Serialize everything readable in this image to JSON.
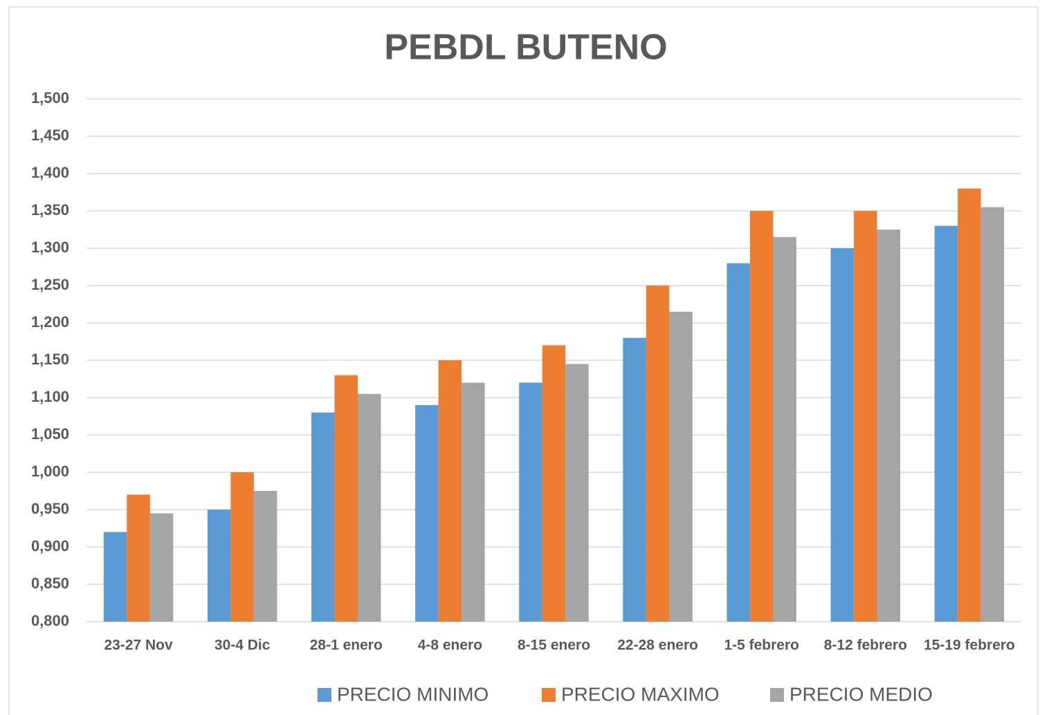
{
  "chart_data": {
    "type": "bar",
    "title": "PEBDL BUTENO",
    "categories": [
      "23-27 Nov",
      "30-4 Dic",
      "28-1 enero",
      "4-8 enero",
      "8-15 enero",
      "22-28 enero",
      "1-5 febrero",
      "8-12 febrero",
      "15-19 febrero"
    ],
    "series": [
      {
        "name": "PRECIO MINIMO",
        "color": "#5b9bd5",
        "values": [
          0.92,
          0.95,
          1.08,
          1.09,
          1.12,
          1.18,
          1.28,
          1.3,
          1.33
        ]
      },
      {
        "name": "PRECIO MAXIMO",
        "color": "#ed7d31",
        "values": [
          0.97,
          1.0,
          1.13,
          1.15,
          1.17,
          1.25,
          1.35,
          1.35,
          1.38
        ]
      },
      {
        "name": "PRECIO MEDIO",
        "color": "#a5a5a5",
        "values": [
          0.945,
          0.975,
          1.105,
          1.12,
          1.145,
          1.215,
          1.315,
          1.325,
          1.355
        ]
      }
    ],
    "ylim": [
      0.8,
      1.5
    ],
    "yticks": [
      {
        "value": 0.8,
        "label": "0,800"
      },
      {
        "value": 0.85,
        "label": "0,850"
      },
      {
        "value": 0.9,
        "label": "0,900"
      },
      {
        "value": 0.95,
        "label": "0,950"
      },
      {
        "value": 1.0,
        "label": "1,000"
      },
      {
        "value": 1.05,
        "label": "1,050"
      },
      {
        "value": 1.1,
        "label": "1,100"
      },
      {
        "value": 1.15,
        "label": "1,150"
      },
      {
        "value": 1.2,
        "label": "1,200"
      },
      {
        "value": 1.25,
        "label": "1,250"
      },
      {
        "value": 1.3,
        "label": "1,300"
      },
      {
        "value": 1.35,
        "label": "1,350"
      },
      {
        "value": 1.4,
        "label": "1,400"
      },
      {
        "value": 1.45,
        "label": "1,450"
      },
      {
        "value": 1.5,
        "label": "1,500"
      }
    ],
    "grid": true,
    "legend": "bottom"
  }
}
